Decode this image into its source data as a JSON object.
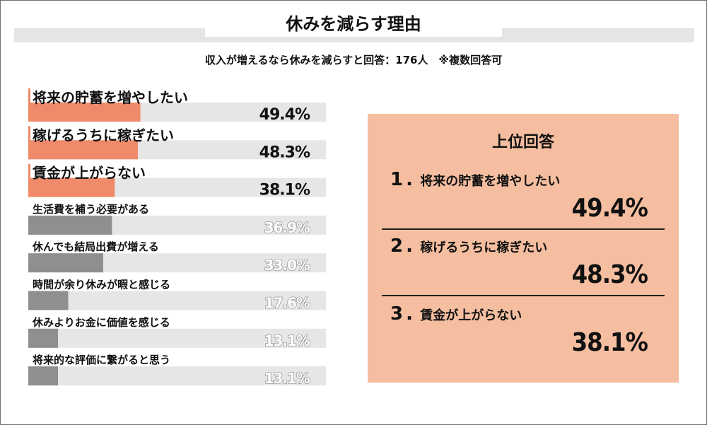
{
  "title": "休みを減らす理由",
  "subtitle": "収入が増えるなら休みを減らすと回答：176人　※複数回答可",
  "chart_data": {
    "type": "bar",
    "orientation": "horizontal",
    "xlim": [
      0,
      100
    ],
    "categories": [
      "将来の貯蓄を増やしたい",
      "稼げるうちに稼ぎたい",
      "賃金が上がらない",
      "生活費を補う必要がある",
      "休んでも結局出費が増える",
      "時間が余り休みが暇と感じる",
      "休みよりお金に価値を感じる",
      "将来的な評価に繋がると思う"
    ],
    "values": [
      49.4,
      48.3,
      38.1,
      36.9,
      33.0,
      17.6,
      13.1,
      13.1
    ],
    "labels": [
      "49.4%",
      "48.3%",
      "38.1%",
      "36.9%",
      "33.0%",
      "17.6%",
      "13.1%",
      "13.1%"
    ],
    "highlight_top": 3,
    "colors": {
      "highlight": "#ef8a6a",
      "other": "#8f8f8f",
      "track": "#e6e6e6"
    }
  },
  "panel": {
    "title": "上位回答",
    "items": [
      {
        "num": "1",
        "sep": ".",
        "label": "将来の貯蓄を増やしたい",
        "value": "49.4%"
      },
      {
        "num": "2",
        "sep": ".",
        "label": "稼げるうちに稼ぎたい",
        "value": "48.3%"
      },
      {
        "num": "3",
        "sep": ".",
        "label": "賃金が上がらない",
        "value": "38.1%"
      }
    ]
  }
}
